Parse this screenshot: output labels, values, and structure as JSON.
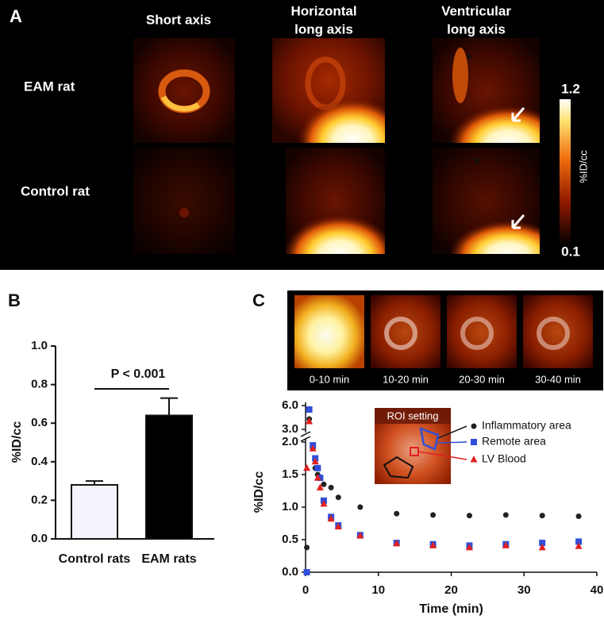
{
  "panel_labels": [
    "A",
    "B",
    "C"
  ],
  "panel_a": {
    "columns": [
      [
        "Short axis"
      ],
      [
        "Horizontal",
        "long axis"
      ],
      [
        "Ventricular",
        "long axis"
      ]
    ],
    "rows": [
      "EAM rat",
      "Control rat"
    ],
    "markers": [
      "*",
      "*"
    ],
    "colorbar_label": "%ID/cc",
    "colorbar_range": [
      0.1,
      1.2
    ]
  },
  "panel_c": {
    "thumbnails": [
      "0-10 min",
      "10-20 min",
      "20-30 min",
      "30-40 min"
    ],
    "inset_label": "ROI setting"
  },
  "chart_data": [
    {
      "type": "bar",
      "categories": [
        "Control rats",
        "EAM rats"
      ],
      "values": [
        0.28,
        0.64
      ],
      "errors": [
        0.02,
        0.09
      ],
      "colors": [
        "#f4f4fe",
        "#000000"
      ],
      "y_label": "%ID/cc",
      "annotation": "P < 0.001",
      "ylim": [
        0,
        1.0
      ],
      "yticks": [
        {
          "value": 0,
          "label": "0.0"
        },
        0.2,
        0.4,
        0.6,
        0.8,
        {
          "value": 1,
          "label": "1.0"
        }
      ]
    },
    {
      "type": "scatter",
      "x": [
        0.17,
        0.5,
        1,
        1.33,
        1.67,
        2,
        2.5,
        3.5,
        4.5,
        7.5,
        12.5,
        17.5,
        22.5,
        27.5,
        32.5,
        37.5
      ],
      "series": [
        {
          "name": "Inflammatory area",
          "color": "#222222",
          "marker": "circle",
          "values": [
            0.38,
            4.3,
            1.9,
            1.6,
            1.5,
            1.45,
            1.35,
            1.3,
            1.15,
            1.0,
            0.9,
            0.88,
            0.87,
            0.88,
            0.87,
            0.86
          ]
        },
        {
          "name": "Remote area",
          "color": "#2f4fd8",
          "marker": "square",
          "values": [
            0.0,
            5.5,
            1.95,
            1.75,
            1.6,
            1.45,
            1.1,
            0.85,
            0.72,
            0.57,
            0.45,
            0.43,
            0.41,
            0.43,
            0.45,
            0.47
          ]
        },
        {
          "name": "LV Blood",
          "color": "#e02020",
          "marker": "triangle",
          "values": [
            1.6,
            4.0,
            1.9,
            1.7,
            1.45,
            1.3,
            1.05,
            0.82,
            0.7,
            0.56,
            0.44,
            0.41,
            0.38,
            0.41,
            0.38,
            0.4
          ]
        }
      ],
      "x_label": "Time (min)",
      "y_label": "%ID/cc",
      "xlim": [
        0,
        40
      ],
      "xticks": [
        0,
        10,
        20,
        30,
        40
      ],
      "ylim": [
        0,
        6
      ],
      "axis_break": [
        2,
        3
      ],
      "yticks": [
        {
          "value": 0,
          "label": "0.0"
        },
        0.5,
        {
          "value": 1,
          "label": "1.0"
        },
        1.5,
        {
          "value": 2,
          "label": "2.0"
        },
        {
          "value": 3,
          "label": "3.0"
        },
        {
          "value": 6,
          "label": "6.0"
        }
      ]
    }
  ]
}
